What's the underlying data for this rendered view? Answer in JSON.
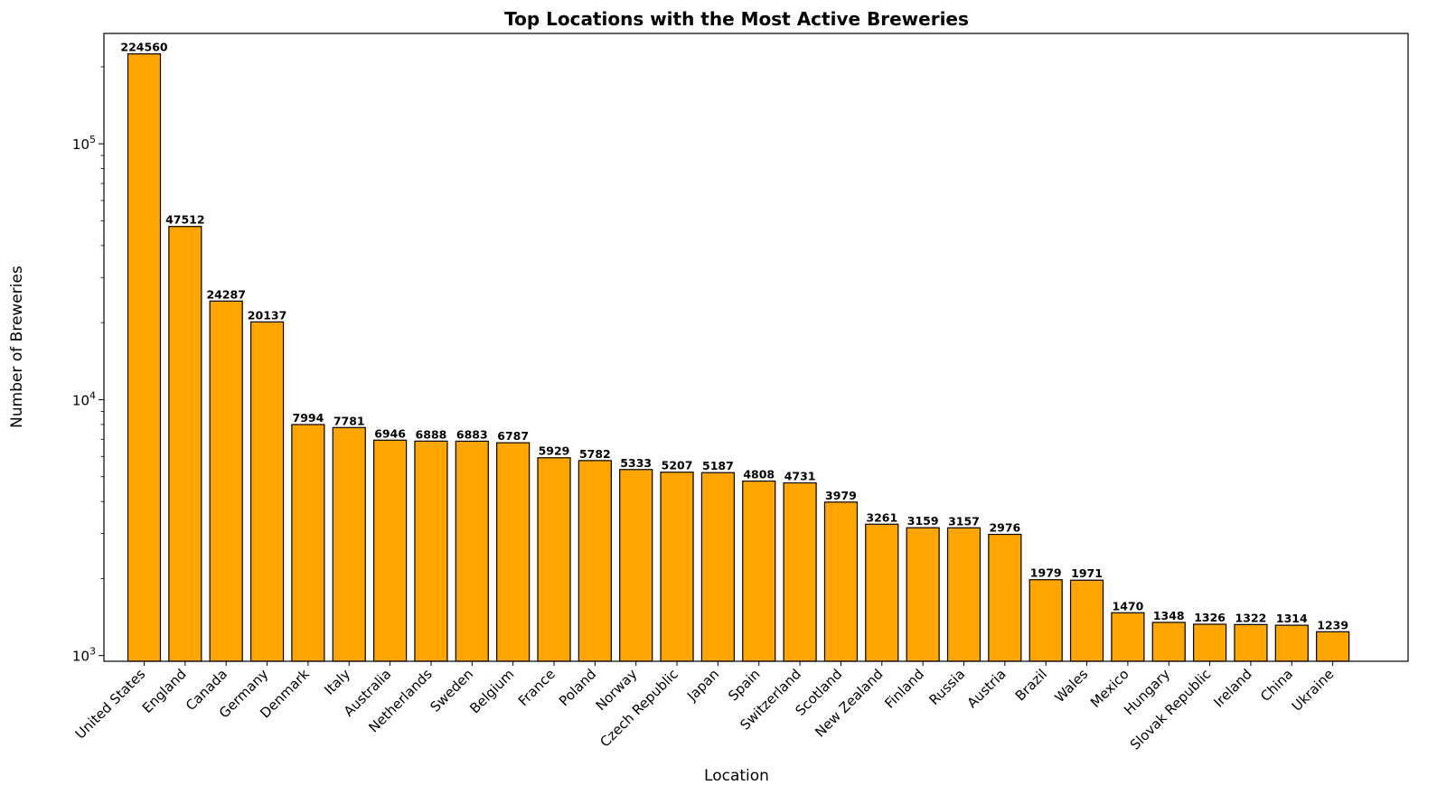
{
  "chart_data": {
    "type": "bar",
    "title": "Top Locations with the Most Active Breweries",
    "xlabel": "Location",
    "ylabel": "Number of Breweries",
    "yscale": "log",
    "ylim": [
      950,
      270000
    ],
    "yticks": [
      1000,
      10000,
      100000
    ],
    "ytick_labels": [
      {
        "base": "10",
        "exp": "3"
      },
      {
        "base": "10",
        "exp": "4"
      },
      {
        "base": "10",
        "exp": "5"
      }
    ],
    "grid": false,
    "bar_color": "#FFA500",
    "edge_color": "#000000",
    "categories": [
      "United States",
      "England",
      "Canada",
      "Germany",
      "Denmark",
      "Italy",
      "Australia",
      "Netherlands",
      "Sweden",
      "Belgium",
      "France",
      "Poland",
      "Norway",
      "Czech Republic",
      "Japan",
      "Spain",
      "Switzerland",
      "Scotland",
      "New Zealand",
      "Finland",
      "Russia",
      "Austria",
      "Brazil",
      "Wales",
      "Mexico",
      "Hungary",
      "Slovak Republic",
      "Ireland",
      "China",
      "Ukraine"
    ],
    "values": [
      224560,
      47512,
      24287,
      20137,
      7994,
      7781,
      6946,
      6888,
      6883,
      6787,
      5929,
      5782,
      5333,
      5207,
      5187,
      4808,
      4731,
      3979,
      3261,
      3159,
      3157,
      2976,
      1979,
      1971,
      1470,
      1348,
      1326,
      1322,
      1314,
      1239
    ],
    "data_labels": [
      "224560",
      "47512",
      "24287",
      "20137",
      "7994",
      "7781",
      "6946",
      "6888",
      "6883",
      "6787",
      "5929",
      "5782",
      "5333",
      "5207",
      "5187",
      "4808",
      "4731",
      "3979",
      "3261",
      "3159",
      "3157",
      "2976",
      "1979",
      "1971",
      "1470",
      "1348",
      "1326",
      "1322",
      "1314",
      "1239"
    ]
  }
}
